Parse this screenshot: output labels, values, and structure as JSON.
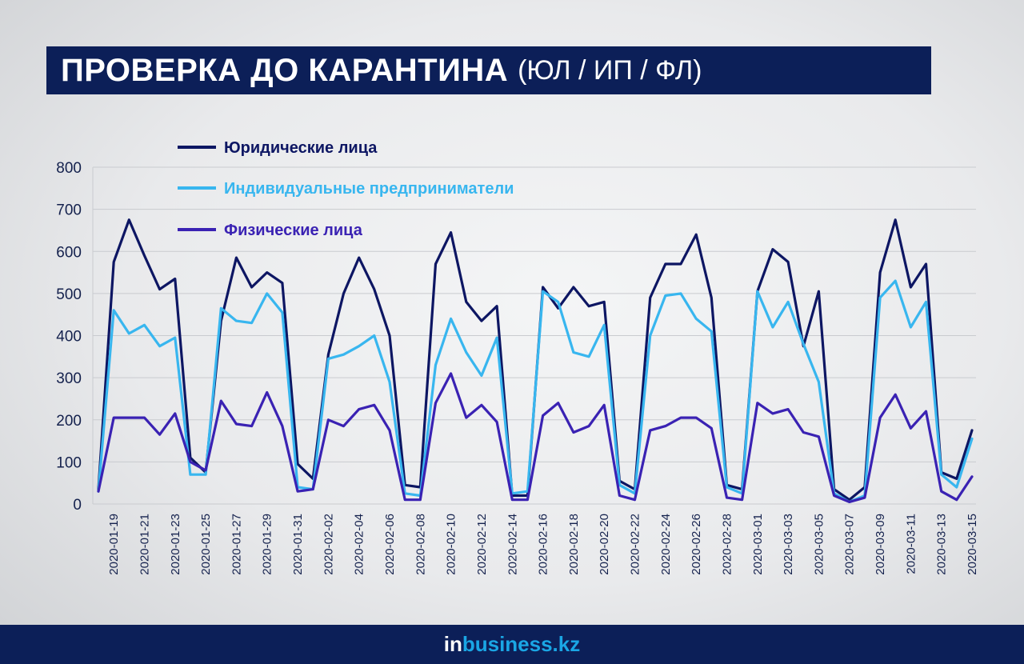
{
  "header": {
    "title": "ПРОВЕРКА ДО КАРАНТИНА",
    "subtitle": "(ЮЛ / ИП / ФЛ)"
  },
  "footer": {
    "brand_prefix": "in",
    "brand_rest": "business.kz"
  },
  "colors": {
    "title_bg": "#0c1f58",
    "yl": "#0d1663",
    "ip": "#38b6ef",
    "fl": "#3a22b3"
  },
  "chart_data": {
    "type": "line",
    "title": "ПРОВЕРКА ДО КАРАНТИНА (ЮЛ / ИП / ФЛ)",
    "xlabel": "",
    "ylabel": "",
    "ylim": [
      0,
      800
    ],
    "yticks": [
      "0",
      "100",
      "200",
      "300",
      "400",
      "500",
      "600",
      "700",
      "800"
    ],
    "grid": true,
    "legend_position": "top-left",
    "x": [
      "2020-01-18",
      "2020-01-19",
      "2020-01-20",
      "2020-01-21",
      "2020-01-22",
      "2020-01-23",
      "2020-01-24",
      "2020-01-25",
      "2020-01-26",
      "2020-01-27",
      "2020-01-28",
      "2020-01-29",
      "2020-01-30",
      "2020-01-31",
      "2020-02-01",
      "2020-02-02",
      "2020-02-03",
      "2020-02-04",
      "2020-02-05",
      "2020-02-06",
      "2020-02-07",
      "2020-02-08",
      "2020-02-09",
      "2020-02-10",
      "2020-02-11",
      "2020-02-12",
      "2020-02-13",
      "2020-02-14",
      "2020-02-15",
      "2020-02-16",
      "2020-02-17",
      "2020-02-18",
      "2020-02-19",
      "2020-02-20",
      "2020-02-21",
      "2020-02-22",
      "2020-02-23",
      "2020-02-24",
      "2020-02-25",
      "2020-02-26",
      "2020-02-27",
      "2020-02-28",
      "2020-02-29",
      "2020-03-01",
      "2020-03-02",
      "2020-03-03",
      "2020-03-04",
      "2020-03-05",
      "2020-03-06",
      "2020-03-07",
      "2020-03-08",
      "2020-03-09",
      "2020-03-10",
      "2020-03-11",
      "2020-03-12",
      "2020-03-13",
      "2020-03-14",
      "2020-03-15"
    ],
    "xtick_labels": [
      "2020-01-19",
      "2020-01-21",
      "2020-01-23",
      "2020-01-25",
      "2020-01-27",
      "2020-01-29",
      "2020-01-31",
      "2020-02-02",
      "2020-02-04",
      "2020-02-06",
      "2020-02-08",
      "2020-02-10",
      "2020-02-12",
      "2020-02-14",
      "2020-02-16",
      "2020-02-18",
      "2020-02-20",
      "2020-02-22",
      "2020-02-24",
      "2020-02-26",
      "2020-02-28",
      "2020-03-01",
      "2020-03-03",
      "2020-03-05",
      "2020-03-07",
      "2020-03-09",
      "2020-03-11",
      "2020-03-13",
      "2020-03-15"
    ],
    "series": [
      {
        "name": "Юридические лица",
        "color": "#0d1663",
        "values": [
          35,
          575,
          675,
          590,
          510,
          535,
          110,
          75,
          435,
          585,
          515,
          550,
          525,
          95,
          60,
          355,
          500,
          585,
          510,
          400,
          45,
          40,
          570,
          645,
          480,
          435,
          470,
          20,
          20,
          515,
          465,
          515,
          470,
          480,
          55,
          35,
          490,
          570,
          570,
          640,
          490,
          45,
          35,
          505,
          605,
          575,
          375,
          505,
          35,
          10,
          40,
          550,
          675,
          515,
          570,
          75,
          60,
          175
        ]
      },
      {
        "name": "Индивидуальные предприниматели",
        "color": "#38b6ef",
        "values": [
          30,
          460,
          405,
          425,
          375,
          395,
          70,
          70,
          465,
          435,
          430,
          500,
          455,
          40,
          35,
          345,
          355,
          375,
          400,
          290,
          25,
          20,
          330,
          440,
          360,
          305,
          395,
          25,
          30,
          505,
          480,
          360,
          350,
          425,
          45,
          25,
          400,
          495,
          500,
          440,
          410,
          40,
          25,
          505,
          420,
          480,
          380,
          290,
          25,
          5,
          20,
          490,
          530,
          420,
          480,
          70,
          40,
          155
        ]
      },
      {
        "name": "Физические лица",
        "color": "#3a22b3",
        "values": [
          30,
          205,
          205,
          205,
          165,
          215,
          100,
          80,
          245,
          190,
          185,
          265,
          185,
          30,
          35,
          200,
          185,
          225,
          235,
          175,
          10,
          10,
          240,
          310,
          205,
          235,
          195,
          10,
          10,
          210,
          240,
          170,
          185,
          235,
          20,
          10,
          175,
          185,
          205,
          205,
          180,
          15,
          10,
          240,
          215,
          225,
          170,
          160,
          20,
          5,
          15,
          205,
          260,
          180,
          220,
          30,
          10,
          65
        ]
      }
    ]
  }
}
